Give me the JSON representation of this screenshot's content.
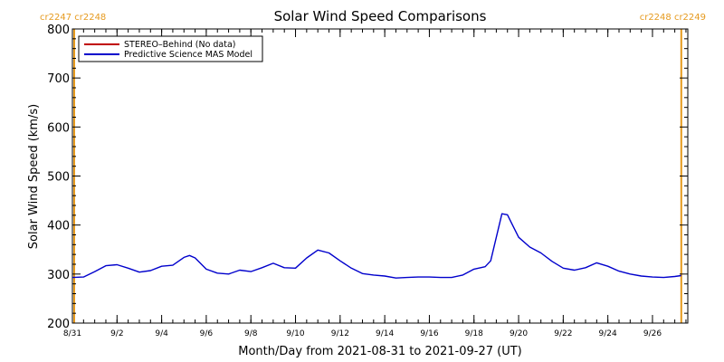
{
  "chart_data": {
    "type": "line",
    "title": "Solar Wind Speed Comparisons",
    "xlabel": "Month/Day from 2021-08-31 to 2021-09-27 (UT)",
    "ylabel": "Solar Wind Speed (km/s)",
    "ylim": [
      200,
      800
    ],
    "xlim": [
      "2021-08-31",
      "2021-09-27T14:00"
    ],
    "yticks": [
      200,
      300,
      400,
      500,
      600,
      700,
      800
    ],
    "xtick_labels": [
      "8/31",
      "9/2",
      "9/4",
      "9/6",
      "9/8",
      "9/10",
      "9/12",
      "9/14",
      "9/16",
      "9/18",
      "9/20",
      "9/22",
      "9/24",
      "9/26"
    ],
    "xtick_dates": [
      "2021-08-31",
      "2021-09-02",
      "2021-09-04",
      "2021-09-06",
      "2021-09-08",
      "2021-09-10",
      "2021-09-12",
      "2021-09-14",
      "2021-09-16",
      "2021-09-18",
      "2021-09-20",
      "2021-09-22",
      "2021-09-24",
      "2021-09-26"
    ],
    "legend": {
      "placement": "top-left",
      "entries": [
        {
          "label": "STEREO–Behind (No data)",
          "color": "#c00000"
        },
        {
          "label": "Predictive Science MAS Model",
          "color": "#0000cc"
        }
      ]
    },
    "carrington_markers": [
      {
        "date": "2021-08-31",
        "label": "cr2247 cr2248",
        "color": "#e69a1e"
      },
      {
        "date": "2021-09-27T07:00",
        "label": "cr2248 cr2249",
        "color": "#e69a1e"
      }
    ],
    "series": [
      {
        "name": "Predictive Science MAS Model",
        "color": "#0000cc",
        "x": [
          "2021-08-31T00:00",
          "2021-08-31T12:00",
          "2021-09-01T00:00",
          "2021-09-01T12:00",
          "2021-09-02T00:00",
          "2021-09-02T12:00",
          "2021-09-03T00:00",
          "2021-09-03T12:00",
          "2021-09-04T00:00",
          "2021-09-04T12:00",
          "2021-09-05T00:00",
          "2021-09-05T06:00",
          "2021-09-05T12:00",
          "2021-09-06T00:00",
          "2021-09-06T12:00",
          "2021-09-07T00:00",
          "2021-09-07T12:00",
          "2021-09-08T00:00",
          "2021-09-08T12:00",
          "2021-09-09T00:00",
          "2021-09-09T12:00",
          "2021-09-10T00:00",
          "2021-09-10T12:00",
          "2021-09-11T00:00",
          "2021-09-11T12:00",
          "2021-09-12T00:00",
          "2021-09-12T12:00",
          "2021-09-13T00:00",
          "2021-09-13T12:00",
          "2021-09-14T00:00",
          "2021-09-14T12:00",
          "2021-09-15T00:00",
          "2021-09-15T12:00",
          "2021-09-16T00:00",
          "2021-09-16T12:00",
          "2021-09-17T00:00",
          "2021-09-17T12:00",
          "2021-09-18T00:00",
          "2021-09-18T12:00",
          "2021-09-18T18:00",
          "2021-09-19T06:00",
          "2021-09-19T12:00",
          "2021-09-19T18:00",
          "2021-09-20T00:00",
          "2021-09-20T12:00",
          "2021-09-21T00:00",
          "2021-09-21T12:00",
          "2021-09-22T00:00",
          "2021-09-22T12:00",
          "2021-09-23T00:00",
          "2021-09-23T12:00",
          "2021-09-24T00:00",
          "2021-09-24T12:00",
          "2021-09-25T00:00",
          "2021-09-25T12:00",
          "2021-09-26T00:00",
          "2021-09-26T12:00",
          "2021-09-27T00:00",
          "2021-09-27T07:00"
        ],
        "values": [
          293,
          294,
          305,
          317,
          319,
          312,
          304,
          307,
          316,
          318,
          334,
          338,
          333,
          310,
          302,
          300,
          308,
          305,
          313,
          322,
          313,
          312,
          333,
          349,
          343,
          327,
          312,
          301,
          298,
          296,
          292,
          293,
          294,
          294,
          293,
          293,
          298,
          310,
          315,
          327,
          423,
          421,
          398,
          375,
          355,
          343,
          326,
          312,
          308,
          313,
          323,
          316,
          306,
          300,
          296,
          294,
          293,
          295,
          297
        ]
      }
    ]
  }
}
